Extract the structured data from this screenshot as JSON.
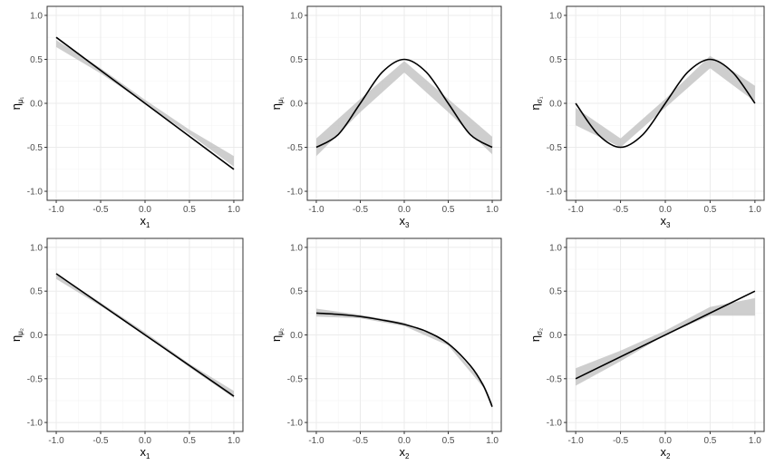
{
  "colors": {
    "panel_border": "#333333",
    "grid_major": "#ebebeb",
    "grid_minor": "#f5f5f5",
    "band": "#bdbdbd",
    "truth": "#000000"
  },
  "chart_data": [
    {
      "type": "line",
      "xlabel": {
        "base": "x",
        "sub": "1"
      },
      "ylabel": {
        "base": "η",
        "sub": "μ1"
      },
      "xlim": [
        -1,
        1
      ],
      "ylim": [
        -1,
        1
      ],
      "x_ticks": [
        "-1.0",
        "-0.5",
        "0.0",
        "0.5",
        "1.0"
      ],
      "y_ticks": [
        "-1.0",
        "-0.5",
        "0.0",
        "0.5",
        "1.0"
      ],
      "grid": true,
      "series": [
        {
          "role": "true",
          "x": [
            -1,
            1
          ],
          "y": [
            0.75,
            -0.75
          ]
        },
        {
          "role": "band",
          "x": [
            -1,
            -0.5,
            0,
            0.5,
            1
          ],
          "lower": [
            0.64,
            0.34,
            0.0,
            -0.35,
            -0.72
          ],
          "upper": [
            0.72,
            0.4,
            0.04,
            -0.3,
            -0.6
          ]
        }
      ]
    },
    {
      "type": "line",
      "xlabel": {
        "base": "x",
        "sub": "3"
      },
      "ylabel": {
        "base": "η",
        "sub": "μ1"
      },
      "xlim": [
        -1,
        1
      ],
      "ylim": [
        -1,
        1
      ],
      "x_ticks": [
        "-1.0",
        "-0.5",
        "0.0",
        "0.5",
        "1.0"
      ],
      "y_ticks": [
        "-1.0",
        "-0.5",
        "0.0",
        "0.5",
        "1.0"
      ],
      "grid": true,
      "series": [
        {
          "role": "true",
          "x": [
            -1,
            -0.75,
            -0.5,
            -0.25,
            0,
            0.25,
            0.5,
            0.75,
            1
          ],
          "y": [
            -0.5,
            -0.354,
            0.0,
            0.354,
            0.5,
            0.354,
            0.0,
            -0.354,
            -0.5
          ]
        },
        {
          "role": "band",
          "x": [
            -1,
            -0.5,
            0,
            0.5,
            1
          ],
          "lower": [
            -0.6,
            -0.1,
            0.35,
            -0.1,
            -0.58
          ],
          "upper": [
            -0.4,
            0.05,
            0.48,
            0.05,
            -0.38
          ]
        }
      ]
    },
    {
      "type": "line",
      "xlabel": {
        "base": "x",
        "sub": "3"
      },
      "ylabel": {
        "base": "η",
        "sub": "σ1"
      },
      "xlim": [
        -1,
        1
      ],
      "ylim": [
        -1,
        1
      ],
      "x_ticks": [
        "-1.0",
        "-0.5",
        "0.0",
        "0.5",
        "1.0"
      ],
      "y_ticks": [
        "-1.0",
        "-0.5",
        "0.0",
        "0.5",
        "1.0"
      ],
      "grid": true,
      "series": [
        {
          "role": "true",
          "x": [
            -1,
            -0.75,
            -0.5,
            -0.25,
            0,
            0.25,
            0.5,
            0.75,
            1
          ],
          "y": [
            0.0,
            -0.354,
            -0.5,
            -0.354,
            0.0,
            0.354,
            0.5,
            0.354,
            0.0
          ]
        },
        {
          "role": "band",
          "x": [
            -1,
            -0.5,
            0,
            0.5,
            1
          ],
          "lower": [
            -0.25,
            -0.5,
            -0.05,
            0.4,
            0.02
          ],
          "upper": [
            -0.05,
            -0.4,
            0.05,
            0.54,
            0.2
          ]
        }
      ]
    },
    {
      "type": "line",
      "xlabel": {
        "base": "x",
        "sub": "1"
      },
      "ylabel": {
        "base": "η",
        "sub": "μ2"
      },
      "xlim": [
        -1,
        1
      ],
      "ylim": [
        -1,
        1
      ],
      "x_ticks": [
        "-1.0",
        "-0.5",
        "0.0",
        "0.5",
        "1.0"
      ],
      "y_ticks": [
        "-1.0",
        "-0.5",
        "0.0",
        "0.5",
        "1.0"
      ],
      "grid": true,
      "series": [
        {
          "role": "true",
          "x": [
            -1,
            1
          ],
          "y": [
            0.7,
            -0.7
          ]
        },
        {
          "role": "band",
          "x": [
            -1,
            -0.5,
            0,
            0.5,
            1
          ],
          "lower": [
            0.64,
            0.33,
            0.0,
            -0.37,
            -0.72
          ],
          "upper": [
            0.7,
            0.37,
            0.03,
            -0.33,
            -0.64
          ]
        }
      ]
    },
    {
      "type": "line",
      "xlabel": {
        "base": "x",
        "sub": "2"
      },
      "ylabel": {
        "base": "η",
        "sub": "μ2"
      },
      "xlim": [
        -1,
        1
      ],
      "ylim": [
        -1,
        1
      ],
      "x_ticks": [
        "-1.0",
        "-0.5",
        "0.0",
        "0.5",
        "1.0"
      ],
      "y_ticks": [
        "-1.0",
        "-0.5",
        "0.0",
        "0.5",
        "1.0"
      ],
      "grid": true,
      "series": [
        {
          "role": "true",
          "x": [
            -1,
            -0.75,
            -0.5,
            -0.25,
            0,
            0.25,
            0.5,
            0.75,
            0.9,
            1
          ],
          "y": [
            0.25,
            0.235,
            0.21,
            0.17,
            0.12,
            0.04,
            -0.1,
            -0.35,
            -0.58,
            -0.82
          ]
        },
        {
          "role": "band",
          "x": [
            -1,
            -0.5,
            0,
            0.5,
            0.9,
            1
          ],
          "lower": [
            0.21,
            0.19,
            0.1,
            -0.12,
            -0.6,
            -0.84
          ],
          "upper": [
            0.3,
            0.23,
            0.14,
            -0.08,
            -0.55,
            -0.78
          ]
        }
      ]
    },
    {
      "type": "line",
      "xlabel": {
        "base": "x",
        "sub": "2"
      },
      "ylabel": {
        "base": "η",
        "sub": "σ2"
      },
      "xlim": [
        -1,
        1
      ],
      "ylim": [
        -1,
        1
      ],
      "x_ticks": [
        "-1.0",
        "-0.5",
        "0.0",
        "0.5",
        "1.0"
      ],
      "y_ticks": [
        "-1.0",
        "-0.5",
        "0.0",
        "0.5",
        "1.0"
      ],
      "grid": true,
      "series": [
        {
          "role": "true",
          "x": [
            -1,
            1
          ],
          "y": [
            -0.5,
            0.5
          ]
        },
        {
          "role": "band",
          "x": [
            -1,
            -0.5,
            0,
            0.5,
            1
          ],
          "lower": [
            -0.58,
            -0.3,
            0.0,
            0.22,
            0.22
          ],
          "upper": [
            -0.38,
            -0.18,
            0.05,
            0.32,
            0.42
          ]
        }
      ]
    }
  ]
}
